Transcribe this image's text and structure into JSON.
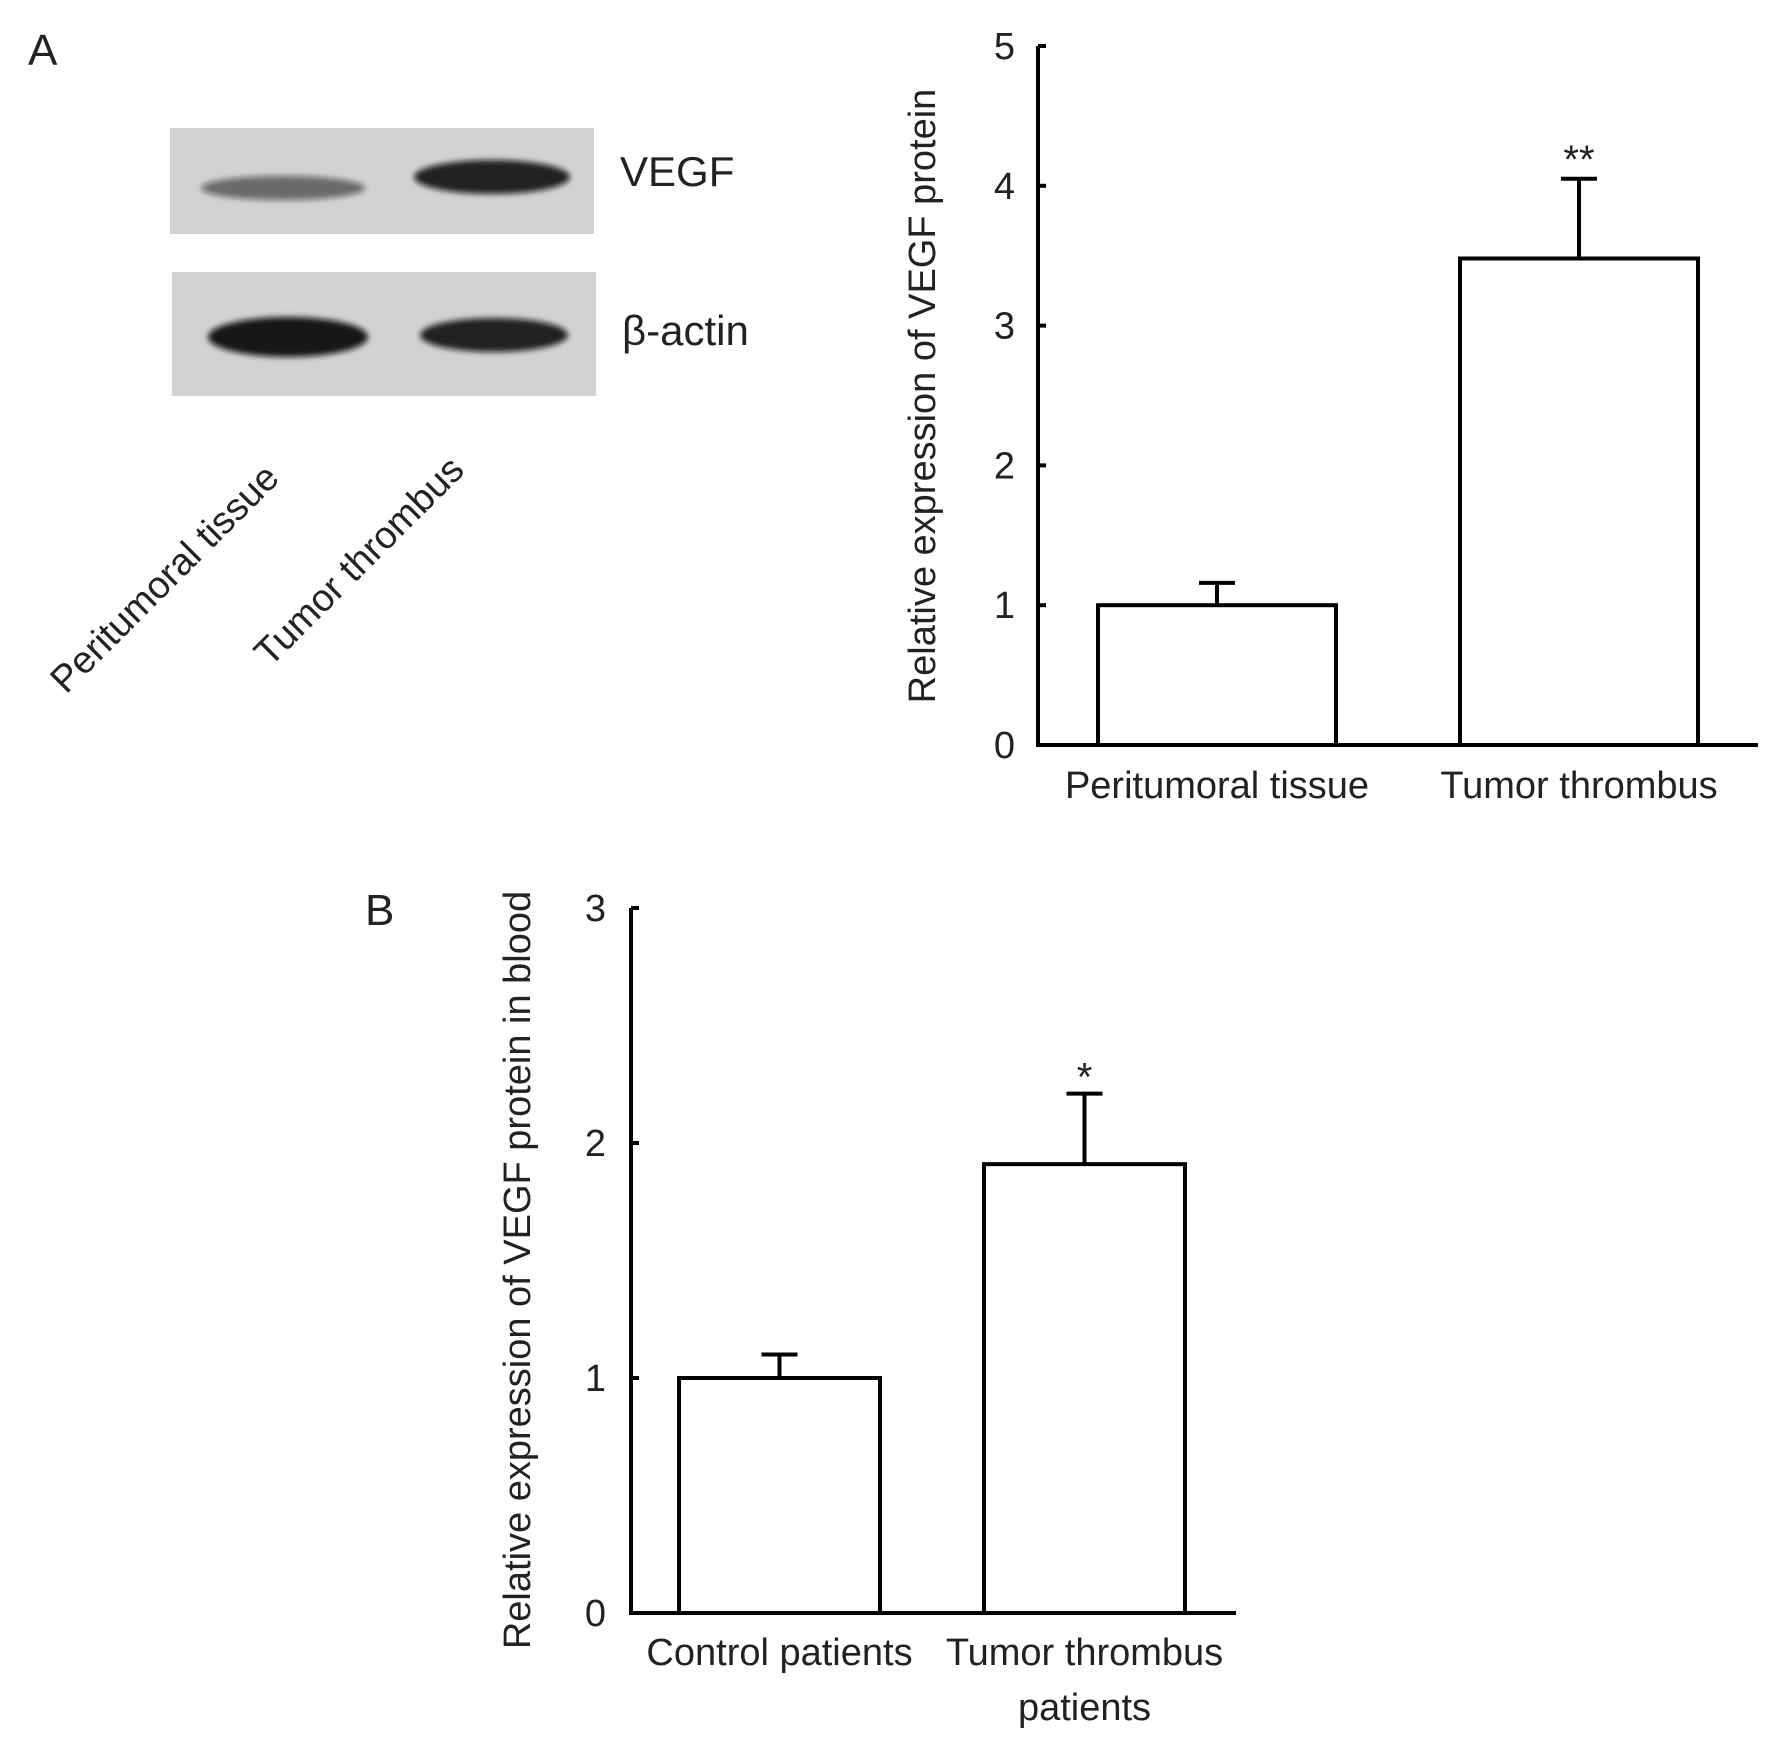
{
  "panels": {
    "a_label": "A",
    "b_label": "B"
  },
  "blot": {
    "bands": [
      {
        "name": "VEGF",
        "label": "VEGF",
        "intensities": [
          0.55,
          0.9
        ]
      },
      {
        "name": "beta-actin",
        "label": "β-actin",
        "intensities": [
          0.95,
          0.9
        ]
      }
    ],
    "lanes": [
      "Peritumoral tissue",
      "Tumor thrombus"
    ],
    "membrane_color": "#d2d2d2",
    "band_color": "#111111"
  },
  "chart_data": [
    {
      "type": "bar",
      "panel": "A",
      "categories": [
        "Peritumoral tissue",
        "Tumor thrombus"
      ],
      "values": [
        1.0,
        3.48
      ],
      "error": [
        0.16,
        0.57
      ],
      "significance": [
        "",
        "**"
      ],
      "title": "",
      "xlabel": "",
      "ylabel": "Relative expression of VEGF protein",
      "ylim": [
        0,
        5
      ],
      "yticks": [
        0,
        1,
        2,
        3,
        4,
        5
      ],
      "grid": false,
      "legend": "none",
      "bar_fill": "#ffffff",
      "bar_stroke": "#000000"
    },
    {
      "type": "bar",
      "panel": "B",
      "categories": [
        [
          "Control patients"
        ],
        [
          "Tumor thrombus",
          "patients"
        ]
      ],
      "values": [
        1.0,
        1.91
      ],
      "error": [
        0.1,
        0.3
      ],
      "significance": [
        "",
        "*"
      ],
      "title": "",
      "xlabel": "",
      "ylabel": "Relative expression of VEGF protein in blood",
      "ylim": [
        0,
        3
      ],
      "yticks": [
        0,
        1,
        2,
        3
      ],
      "grid": false,
      "legend": "none",
      "bar_fill": "#ffffff",
      "bar_stroke": "#000000"
    }
  ]
}
